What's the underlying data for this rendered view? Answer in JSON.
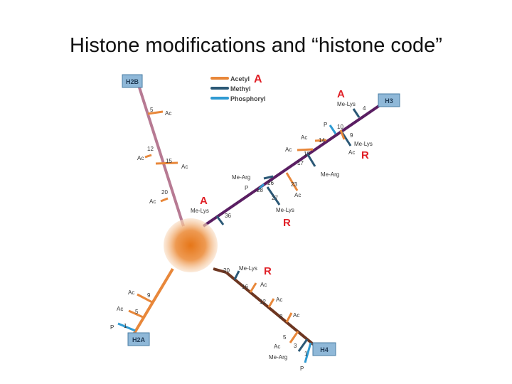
{
  "title": "Histone modifications and “histone code”",
  "colors": {
    "acetyl": "#e8873a",
    "methyl": "#2b5876",
    "phosphoryl": "#2f9bd3",
    "h2b_tail": "#b77a93",
    "h3_tail": "#5a1e62",
    "h2a_tail": "#e8873a",
    "h4_tail": "#6d3621",
    "activate": "#e02027",
    "repress": "#e02027",
    "box_fill": "#8fb8d8",
    "box_stroke": "#4a7ea5"
  },
  "legend": [
    {
      "label": "Acetyl",
      "type": "acetyl",
      "mark": "A"
    },
    {
      "label": "Methyl",
      "type": "methyl",
      "mark": ""
    },
    {
      "label": "Phosphoryl",
      "type": "phosphoryl",
      "mark": ""
    }
  ],
  "tails": {
    "H2B": {
      "label": "H2B",
      "sites": [
        {
          "num": "5",
          "mod": "Ac"
        },
        {
          "num": "12",
          "mod": "Ac"
        },
        {
          "num": "15",
          "mod": "Ac"
        },
        {
          "num": "20",
          "mod": "Ac"
        }
      ]
    },
    "H3": {
      "label": "H3",
      "sites": [
        {
          "num": "4",
          "mod": "Me-Lys",
          "mark": "A"
        },
        {
          "num": "10",
          "mod": "P"
        },
        {
          "num": "9",
          "mod": "Me-Lys",
          "mod2": "Ac",
          "mark": "R"
        },
        {
          "num": "14",
          "mod": "Ac"
        },
        {
          "num": "18",
          "mod": "Ac"
        },
        {
          "num": "17",
          "mod": "Me-Arg"
        },
        {
          "num": "26",
          "mod": "Me-Arg"
        },
        {
          "num": "28",
          "mod": "P"
        },
        {
          "num": "23",
          "mod": "Ac"
        },
        {
          "num": "27",
          "mod": "Me-Lys",
          "mark": "R"
        },
        {
          "num": "36",
          "mod": "Me-Lys",
          "mark": "A"
        }
      ]
    },
    "H2A": {
      "label": "H2A",
      "sites": [
        {
          "num": "9",
          "mod": "Ac"
        },
        {
          "num": "5",
          "mod": "Ac"
        },
        {
          "num": "1",
          "mod": "P"
        }
      ]
    },
    "H4": {
      "label": "H4",
      "sites": [
        {
          "num": "20",
          "mod": "Me-Lys",
          "mark": "R"
        },
        {
          "num": "16",
          "mod": "Ac"
        },
        {
          "num": "12",
          "mod": "Ac"
        },
        {
          "num": "8",
          "mod": "Ac"
        },
        {
          "num": "5",
          "mod": "Ac"
        },
        {
          "num": "3",
          "mod": "Me-Arg"
        },
        {
          "num": "1",
          "mod": "P"
        }
      ]
    }
  }
}
